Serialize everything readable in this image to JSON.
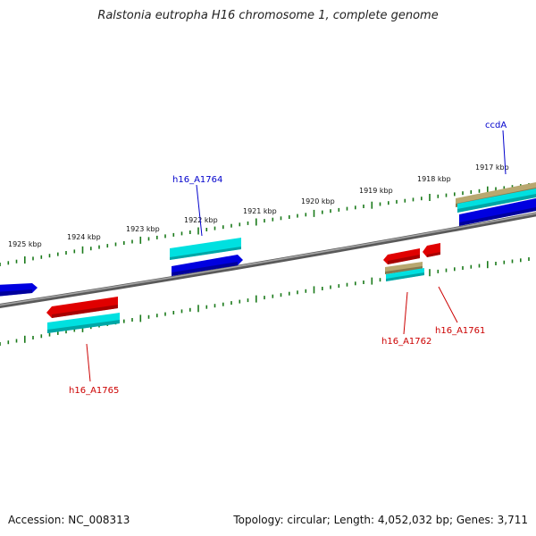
{
  "title": "Ralstonia eutropha H16 chromosome 1, complete genome",
  "footer": {
    "accession": "Accession: NC_008313",
    "summary": "Topology: circular; Length: 4,052,032 bp; Genes: 3,711"
  },
  "colors": {
    "backbone": "#777777",
    "ticks": "#1a7a1a",
    "forward_gene": "#0000e0",
    "reverse_gene": "#e00000",
    "cds": "#00e0e0",
    "other_feature": "#b8a870",
    "forward_label": "#0000cc",
    "reverse_label": "#cc0000"
  },
  "kbp_labels": [
    "1925 kbp",
    "1924 kbp",
    "1923 kbp",
    "1922 kbp",
    "1921 kbp",
    "1920 kbp",
    "1919 kbp",
    "1918 kbp",
    "1917 kbp"
  ],
  "gene_labels": {
    "forward": [
      "h16_A1764",
      "ccdA"
    ],
    "reverse": [
      "h16_A1765",
      "h16_A1762",
      "h16_A1761"
    ]
  }
}
